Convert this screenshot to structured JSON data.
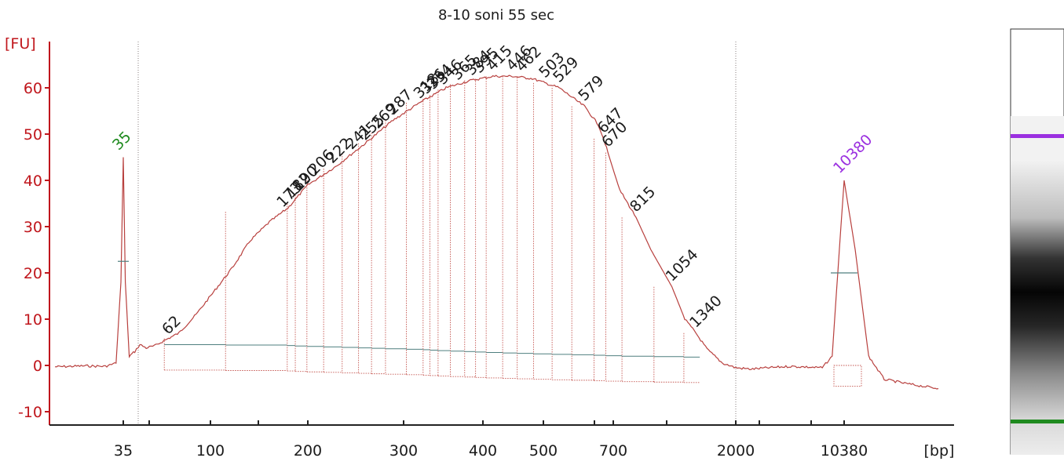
{
  "chart_data": {
    "type": "line",
    "title": "8-10 soni 55 sec",
    "ylabel": "[FU]",
    "xlabel": "[bp]",
    "ylim": [
      -12,
      70
    ],
    "y_ticks": [
      -10,
      0,
      10,
      20,
      30,
      40,
      50,
      60
    ],
    "x_scale": "sizing-ladder",
    "x_ticks": [
      {
        "label": "35",
        "bp": 35
      },
      {
        "label": "",
        "bp": 50
      },
      {
        "label": "100",
        "bp": 100
      },
      {
        "label": "",
        "bp": 150
      },
      {
        "label": "200",
        "bp": 200
      },
      {
        "label": "300",
        "bp": 300
      },
      {
        "label": "400",
        "bp": 400
      },
      {
        "label": "500",
        "bp": 500
      },
      {
        "label": "",
        "bp": 600
      },
      {
        "label": "700",
        "bp": 700
      },
      {
        "label": "",
        "bp": 1000
      },
      {
        "label": "2000",
        "bp": 2000
      },
      {
        "label": "",
        "bp": 3000
      },
      {
        "label": "",
        "bp": 7000
      },
      {
        "label": "10380",
        "bp": 10380
      }
    ],
    "markers": [
      {
        "label": "35",
        "bp": 35,
        "height": 45,
        "color": "#1f8a1f"
      },
      {
        "label": "10380",
        "bp": 10380,
        "height": 40,
        "color": "#9b30e0"
      }
    ],
    "trace": [
      {
        "bp": 15,
        "fu": -0.3
      },
      {
        "bp": 22,
        "fu": -0.1
      },
      {
        "bp": 28,
        "fu": -0.2
      },
      {
        "bp": 32,
        "fu": 0.5
      },
      {
        "bp": 34,
        "fu": 18
      },
      {
        "bp": 35,
        "fu": 45
      },
      {
        "bp": 36,
        "fu": 18
      },
      {
        "bp": 38,
        "fu": 2
      },
      {
        "bp": 41,
        "fu": 3
      },
      {
        "bp": 44,
        "fu": 4.5
      },
      {
        "bp": 48,
        "fu": 3.8
      },
      {
        "bp": 53,
        "fu": 4.2
      },
      {
        "bp": 60,
        "fu": 5.5
      },
      {
        "bp": 70,
        "fu": 7
      },
      {
        "bp": 85,
        "fu": 11
      },
      {
        "bp": 100,
        "fu": 15
      },
      {
        "bp": 120,
        "fu": 21
      },
      {
        "bp": 140,
        "fu": 27
      },
      {
        "bp": 160,
        "fu": 31
      },
      {
        "bp": 178,
        "fu": 34
      },
      {
        "bp": 200,
        "fu": 39
      },
      {
        "bp": 225,
        "fu": 43
      },
      {
        "bp": 255,
        "fu": 48
      },
      {
        "bp": 287,
        "fu": 53
      },
      {
        "bp": 320,
        "fu": 57
      },
      {
        "bp": 350,
        "fu": 60
      },
      {
        "bp": 380,
        "fu": 61.5
      },
      {
        "bp": 415,
        "fu": 62.5
      },
      {
        "bp": 446,
        "fu": 62.5
      },
      {
        "bp": 480,
        "fu": 62
      },
      {
        "bp": 529,
        "fu": 60
      },
      {
        "bp": 579,
        "fu": 56
      },
      {
        "bp": 620,
        "fu": 52
      },
      {
        "bp": 647,
        "fu": 49
      },
      {
        "bp": 670,
        "fu": 46
      },
      {
        "bp": 730,
        "fu": 38
      },
      {
        "bp": 815,
        "fu": 32
      },
      {
        "bp": 900,
        "fu": 25
      },
      {
        "bp": 1054,
        "fu": 17
      },
      {
        "bp": 1200,
        "fu": 10
      },
      {
        "bp": 1340,
        "fu": 7
      },
      {
        "bp": 1500,
        "fu": 3.5
      },
      {
        "bp": 1750,
        "fu": 0.5
      },
      {
        "bp": 2000,
        "fu": -0.5
      },
      {
        "bp": 2600,
        "fu": -0.8
      },
      {
        "bp": 3500,
        "fu": -0.5
      },
      {
        "bp": 5000,
        "fu": -0.2
      },
      {
        "bp": 8000,
        "fu": -0.5
      },
      {
        "bp": 9000,
        "fu": 2
      },
      {
        "bp": 9800,
        "fu": 25
      },
      {
        "bp": 10380,
        "fu": 40
      },
      {
        "bp": 11000,
        "fu": 25
      },
      {
        "bp": 11800,
        "fu": 2
      },
      {
        "bp": 12800,
        "fu": -3
      },
      {
        "bp": 14500,
        "fu": -4
      },
      {
        "bp": 17000,
        "fu": -5
      }
    ],
    "peaks": [
      {
        "label": "62",
        "bp": 62,
        "fu": 5.5
      },
      {
        "label": "173",
        "bp": 173,
        "fu": 33
      },
      {
        "label": "182",
        "bp": 182,
        "fu": 35
      },
      {
        "label": "190",
        "bp": 190,
        "fu": 36.5
      },
      {
        "label": "206",
        "bp": 206,
        "fu": 40
      },
      {
        "label": "222",
        "bp": 222,
        "fu": 42.5
      },
      {
        "label": "241",
        "bp": 241,
        "fu": 45.5
      },
      {
        "label": "255",
        "bp": 255,
        "fu": 47.5
      },
      {
        "label": "269",
        "bp": 269,
        "fu": 50
      },
      {
        "label": "287",
        "bp": 287,
        "fu": 53
      },
      {
        "label": "318",
        "bp": 318,
        "fu": 56.5
      },
      {
        "label": "326",
        "bp": 326,
        "fu": 57.5
      },
      {
        "label": "334",
        "bp": 334,
        "fu": 58.5
      },
      {
        "label": "346",
        "bp": 346,
        "fu": 59.5
      },
      {
        "label": "365",
        "bp": 365,
        "fu": 60.5
      },
      {
        "label": "384",
        "bp": 384,
        "fu": 61.5
      },
      {
        "label": "395",
        "bp": 395,
        "fu": 62
      },
      {
        "label": "415",
        "bp": 415,
        "fu": 62.5
      },
      {
        "label": "446",
        "bp": 446,
        "fu": 62.5
      },
      {
        "label": "462",
        "bp": 462,
        "fu": 62.3
      },
      {
        "label": "503",
        "bp": 503,
        "fu": 61
      },
      {
        "label": "529",
        "bp": 529,
        "fu": 60
      },
      {
        "label": "579",
        "bp": 579,
        "fu": 56
      },
      {
        "label": "647",
        "bp": 647,
        "fu": 49
      },
      {
        "label": "670",
        "bp": 670,
        "fu": 46
      },
      {
        "label": "815",
        "bp": 815,
        "fu": 32
      },
      {
        "label": "1054",
        "bp": 1054,
        "fu": 17
      },
      {
        "label": "1340",
        "bp": 1340,
        "fu": 7
      }
    ],
    "grid": false,
    "gel_lane": {
      "bands": [
        {
          "bp": 10380,
          "color": "#9b30e0",
          "role": "upper-marker"
        },
        {
          "bp": 35,
          "color": "#1f8a1f",
          "role": "lower-marker"
        }
      ],
      "smear_center_bp": 430
    }
  }
}
